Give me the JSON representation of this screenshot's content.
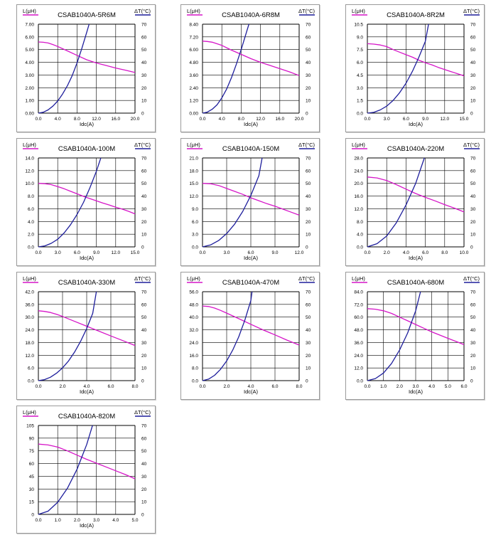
{
  "colors": {
    "inductance": "#d616c8",
    "temperature": "#1e1e9c",
    "grid": "#000000"
  },
  "chart_data": [
    {
      "type": "line",
      "title": "CSAB1040A-5R6M",
      "ylabel": "L(μH)",
      "y2label": "ΔT(°C)",
      "xlabel": "Idc(A)",
      "xlim": [
        0,
        20
      ],
      "ylim": [
        0,
        7
      ],
      "y2lim": [
        0,
        70
      ],
      "x_ticks": [
        "0.0",
        "4.0",
        "8.0",
        "12.0",
        "16.0",
        "20.0"
      ],
      "y_ticks": [
        "0.00",
        "1.00",
        "2.00",
        "3.00",
        "4.00",
        "5.00",
        "6.00",
        "7.00"
      ],
      "y2_ticks": [
        "0",
        "10",
        "20",
        "30",
        "40",
        "50",
        "60",
        "70"
      ],
      "series": [
        {
          "x": [
            0,
            1,
            2,
            3,
            4,
            6,
            8,
            10,
            12,
            14,
            16,
            18,
            20
          ],
          "y": [
            5.6,
            5.58,
            5.52,
            5.4,
            5.25,
            4.9,
            4.55,
            4.2,
            3.95,
            3.75,
            3.55,
            3.38,
            3.2
          ]
        },
        {
          "axis": "right",
          "x": [
            0,
            1,
            2,
            3,
            4,
            5,
            6,
            7,
            8,
            9,
            10,
            10.5
          ],
          "y": [
            0,
            0.7,
            2.5,
            5.5,
            9.5,
            15,
            21.5,
            29.5,
            39.5,
            51,
            63.5,
            70
          ]
        }
      ]
    },
    {
      "type": "line",
      "title": "CSAB1040A-6R8M",
      "ylabel": "L(μH)",
      "y2label": "ΔT(°C)",
      "xlabel": "Idc(A)",
      "xlim": [
        0,
        20
      ],
      "ylim": [
        0,
        8.4
      ],
      "y2lim": [
        0,
        70
      ],
      "x_ticks": [
        "0.0",
        "4.0",
        "8.0",
        "12.0",
        "16.0",
        "20.0"
      ],
      "y_ticks": [
        "0.00",
        "1.20",
        "2.40",
        "3.60",
        "4.80",
        "6.00",
        "7.20",
        "8.40"
      ],
      "y2_ticks": [
        "0",
        "10",
        "20",
        "30",
        "40",
        "50",
        "60",
        "70"
      ],
      "series": [
        {
          "x": [
            0,
            1,
            2,
            3,
            4,
            6,
            8,
            10,
            12,
            14,
            16,
            18,
            20
          ],
          "y": [
            6.8,
            6.77,
            6.7,
            6.55,
            6.4,
            5.95,
            5.55,
            5.15,
            4.8,
            4.5,
            4.2,
            3.9,
            3.55
          ]
        },
        {
          "axis": "right",
          "x": [
            0,
            1,
            2,
            3,
            4,
            5,
            6,
            7,
            8,
            9,
            9.6
          ],
          "y": [
            0,
            0.8,
            3,
            6.5,
            12,
            19,
            28,
            38.5,
            50,
            62.5,
            70
          ]
        }
      ]
    },
    {
      "type": "line",
      "title": "CSAB1040A-8R2M",
      "ylabel": "L(μH)",
      "y2label": "ΔT(°C)",
      "xlabel": "Idc(A)",
      "xlim": [
        0,
        15
      ],
      "ylim": [
        0,
        10.5
      ],
      "y2lim": [
        0,
        70
      ],
      "x_ticks": [
        "0.0",
        "3.0",
        "6.0",
        "9.0",
        "12.0",
        "15.0"
      ],
      "y_ticks": [
        "0.0",
        "1.5",
        "3.0",
        "4.5",
        "6.0",
        "7.5",
        "9.0",
        "10.5"
      ],
      "y2_ticks": [
        "0",
        "10",
        "20",
        "30",
        "40",
        "50",
        "60",
        "70"
      ],
      "series": [
        {
          "x": [
            0,
            1,
            2,
            3,
            4,
            5,
            6,
            7,
            8,
            9,
            10,
            11,
            12,
            13,
            14,
            15
          ],
          "y": [
            8.2,
            8.15,
            8.05,
            7.85,
            7.5,
            7.2,
            6.9,
            6.6,
            6.25,
            5.95,
            5.7,
            5.4,
            5.15,
            4.9,
            4.65,
            4.4
          ]
        },
        {
          "axis": "right",
          "x": [
            0,
            1,
            2,
            3,
            4,
            5,
            6,
            7,
            8,
            9,
            9.5
          ],
          "y": [
            0,
            0.6,
            2.5,
            5.5,
            10,
            16,
            23.5,
            33,
            44,
            56.5,
            70
          ]
        }
      ]
    },
    {
      "type": "line",
      "title": "CSAB1040A-100M",
      "ylabel": "L(μH)",
      "y2label": "ΔT(°C)",
      "xlabel": "Idc(A)",
      "xlim": [
        0,
        15
      ],
      "ylim": [
        0,
        14
      ],
      "y2lim": [
        0,
        70
      ],
      "x_ticks": [
        "0.0",
        "3.0",
        "6.0",
        "9.0",
        "12.0",
        "15.0"
      ],
      "y_ticks": [
        "0.0",
        "2.0",
        "4.0",
        "6.0",
        "8.0",
        "10.0",
        "12.0",
        "14.0"
      ],
      "y2_ticks": [
        "0",
        "10",
        "20",
        "30",
        "40",
        "50",
        "60",
        "70"
      ],
      "series": [
        {
          "x": [
            0,
            1,
            2,
            3,
            4,
            5,
            6,
            7,
            8,
            9,
            10,
            11,
            12,
            13,
            14,
            15
          ],
          "y": [
            10,
            9.95,
            9.8,
            9.5,
            9.15,
            8.75,
            8.35,
            7.95,
            7.6,
            7.25,
            6.9,
            6.6,
            6.25,
            5.95,
            5.6,
            5.2
          ]
        },
        {
          "axis": "right",
          "x": [
            0,
            1,
            2,
            3,
            4,
            5,
            6,
            7,
            8,
            9,
            9.7
          ],
          "y": [
            0,
            0.8,
            2.8,
            6,
            11,
            17.5,
            25.5,
            35,
            46.5,
            59.5,
            70
          ]
        }
      ]
    },
    {
      "type": "line",
      "title": "CSAB1040A-150M",
      "ylabel": "L(μH)",
      "y2label": "ΔT(°C)",
      "xlabel": "Idc(A)",
      "xlim": [
        0,
        12
      ],
      "ylim": [
        0,
        21
      ],
      "y2lim": [
        0,
        70
      ],
      "x_ticks": [
        "0.0",
        "3.0",
        "6.0",
        "9.0",
        "12.0"
      ],
      "y_ticks": [
        "0.0",
        "3.0",
        "6.0",
        "9.0",
        "12.0",
        "15.0",
        "18.0",
        "21.0"
      ],
      "y2_ticks": [
        "0",
        "10",
        "20",
        "30",
        "40",
        "50",
        "60",
        "70"
      ],
      "series": [
        {
          "x": [
            0,
            1,
            2,
            3,
            4,
            5,
            6,
            7,
            8,
            9,
            10,
            11,
            12
          ],
          "y": [
            15,
            14.9,
            14.5,
            13.8,
            13.1,
            12.4,
            11.6,
            10.9,
            10.2,
            9.6,
            8.9,
            8.2,
            7.5
          ]
        },
        {
          "axis": "right",
          "x": [
            0,
            1,
            2,
            3,
            4,
            5,
            6,
            7,
            7.4
          ],
          "y": [
            0,
            1.5,
            5,
            10.5,
            18,
            28,
            40.5,
            56,
            70
          ]
        }
      ]
    },
    {
      "type": "line",
      "title": "CSAB1040A-220M",
      "ylabel": "L(μH)",
      "y2label": "ΔT(°C)",
      "xlabel": "Idc(A)",
      "xlim": [
        0,
        10
      ],
      "ylim": [
        0,
        28
      ],
      "y2lim": [
        0,
        70
      ],
      "x_ticks": [
        "0.0",
        "2.0",
        "4.0",
        "6.0",
        "8.0",
        "10.0"
      ],
      "y_ticks": [
        "0.0",
        "4.0",
        "8.0",
        "12.0",
        "16.0",
        "20.0",
        "24.0",
        "28.0"
      ],
      "y2_ticks": [
        "0",
        "10",
        "20",
        "30",
        "40",
        "50",
        "60",
        "70"
      ],
      "series": [
        {
          "x": [
            0,
            1,
            2,
            3,
            4,
            5,
            6,
            7,
            8,
            9,
            10
          ],
          "y": [
            22,
            21.7,
            20.9,
            19.6,
            18.2,
            16.8,
            15.6,
            14.5,
            13.3,
            12.2,
            11
          ]
        },
        {
          "axis": "right",
          "x": [
            0,
            1,
            2,
            3,
            4,
            5,
            5.9
          ],
          "y": [
            0,
            2.5,
            8.5,
            19,
            33,
            50,
            70
          ]
        }
      ]
    },
    {
      "type": "line",
      "title": "CSAB1040A-330M",
      "ylabel": "L(μH)",
      "y2label": "ΔT(°C)",
      "xlabel": "Idc(A)",
      "xlim": [
        0,
        8
      ],
      "ylim": [
        0,
        42
      ],
      "y2lim": [
        0,
        70
      ],
      "x_ticks": [
        "0.0",
        "2.0",
        "4.0",
        "6.0",
        "8.0"
      ],
      "y_ticks": [
        "0.0",
        "6.0",
        "12.0",
        "18.0",
        "24.0",
        "30.0",
        "36.0",
        "42.0"
      ],
      "y2_ticks": [
        "0",
        "10",
        "20",
        "30",
        "40",
        "50",
        "60",
        "70"
      ],
      "series": [
        {
          "x": [
            0,
            0.5,
            1,
            1.5,
            2,
            3,
            4,
            5,
            6,
            7,
            8
          ],
          "y": [
            33,
            32.7,
            32.2,
            31.3,
            30.3,
            28,
            25.7,
            23.4,
            21.1,
            18.9,
            16.6
          ]
        },
        {
          "axis": "right",
          "x": [
            0,
            0.5,
            1,
            1.5,
            2,
            2.5,
            3,
            3.5,
            4,
            4.5,
            4.8
          ],
          "y": [
            0,
            0.8,
            2.7,
            5.8,
            10,
            15.5,
            22.5,
            31,
            41,
            53,
            70
          ]
        }
      ]
    },
    {
      "type": "line",
      "title": "CSAB1040A-470M",
      "ylabel": "L(μH)",
      "y2label": "ΔT(°C)",
      "xlabel": "Idc(A)",
      "xlim": [
        0,
        8
      ],
      "ylim": [
        0,
        56
      ],
      "y2lim": [
        0,
        70
      ],
      "x_ticks": [
        "0.0",
        "2.0",
        "4.0",
        "6.0",
        "8.0"
      ],
      "y_ticks": [
        "0.0",
        "8.0",
        "16.0",
        "24.0",
        "32.0",
        "40.0",
        "48.0",
        "56.0"
      ],
      "y2_ticks": [
        "0",
        "10",
        "20",
        "30",
        "40",
        "50",
        "60",
        "70"
      ],
      "series": [
        {
          "x": [
            0,
            0.5,
            1,
            1.5,
            2,
            3,
            4,
            5,
            6,
            7,
            8
          ],
          "y": [
            47,
            46.7,
            45.7,
            44.2,
            42.5,
            39,
            35.5,
            32,
            28.8,
            25.5,
            22.4
          ]
        },
        {
          "axis": "right",
          "x": [
            0,
            0.5,
            1,
            1.5,
            2,
            2.5,
            3,
            3.5,
            4,
            4.1
          ],
          "y": [
            0,
            1.2,
            4.2,
            9,
            15.5,
            24,
            34.5,
            47.5,
            63,
            70
          ]
        }
      ]
    },
    {
      "type": "line",
      "title": "CSAB1040A-680M",
      "ylabel": "L(μH)",
      "y2label": "ΔT(°C)",
      "xlabel": "Idc(A)",
      "xlim": [
        0,
        6
      ],
      "ylim": [
        0,
        84
      ],
      "y2lim": [
        0,
        70
      ],
      "x_ticks": [
        "0.0",
        "1.0",
        "2.0",
        "3.0",
        "4.0",
        "5.0",
        "6.0"
      ],
      "y_ticks": [
        "0.0",
        "12.0",
        "24.0",
        "36.0",
        "48.0",
        "60.0",
        "72.0",
        "84.0"
      ],
      "y2_ticks": [
        "0",
        "10",
        "20",
        "30",
        "40",
        "50",
        "60",
        "70"
      ],
      "series": [
        {
          "x": [
            0,
            0.5,
            1,
            1.5,
            2,
            2.5,
            3,
            3.5,
            4,
            4.5,
            5,
            5.5,
            6
          ],
          "y": [
            68,
            67.5,
            66,
            63.5,
            60,
            56.5,
            53,
            49.5,
            46,
            43,
            40,
            37,
            34
          ]
        },
        {
          "axis": "right",
          "x": [
            0,
            0.5,
            1,
            1.5,
            2,
            2.5,
            3,
            3.3
          ],
          "y": [
            0,
            1.6,
            6,
            13.5,
            24,
            37.5,
            55,
            70
          ]
        }
      ]
    },
    {
      "type": "line",
      "title": "CSAB1040A-820M",
      "ylabel": "L(μH)",
      "y2label": "ΔT(°C)",
      "xlabel": "Idc(A)",
      "xlim": [
        0,
        5
      ],
      "ylim": [
        0,
        105
      ],
      "y2lim": [
        0,
        70
      ],
      "x_ticks": [
        "0.0",
        "1.0",
        "2.0",
        "3.0",
        "4.0",
        "5.0"
      ],
      "y_ticks": [
        "0",
        "15",
        "30",
        "45",
        "60",
        "75",
        "90",
        "105"
      ],
      "y2_ticks": [
        "0",
        "10",
        "20",
        "30",
        "40",
        "50",
        "60",
        "70"
      ],
      "series": [
        {
          "x": [
            0,
            0.5,
            1,
            1.5,
            2,
            2.5,
            3,
            3.5,
            4,
            4.5,
            5
          ],
          "y": [
            83,
            82,
            79.5,
            75,
            70,
            65,
            60.5,
            56,
            51.5,
            47,
            42
          ]
        },
        {
          "axis": "right",
          "x": [
            0,
            0.5,
            1,
            1.5,
            2,
            2.5,
            2.8
          ],
          "y": [
            0,
            2.5,
            9.5,
            20.5,
            35.5,
            55,
            70
          ]
        }
      ]
    }
  ]
}
